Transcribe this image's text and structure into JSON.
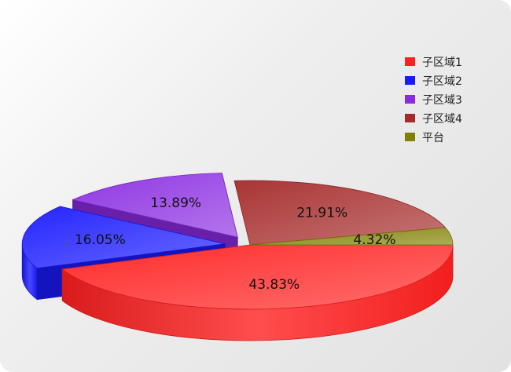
{
  "chart_data": {
    "type": "pie",
    "title": "",
    "categories": [
      "子区域1",
      "子区域2",
      "子区域3",
      "子区域4",
      "平台"
    ],
    "values": [
      43.83,
      16.05,
      13.89,
      21.91,
      4.32
    ],
    "labels": [
      "43.83%",
      "16.05%",
      "13.89%",
      "21.91%",
      "4.32%"
    ],
    "colors": [
      "#ff2020",
      "#1a1aff",
      "#8a2be2",
      "#a52a2a",
      "#808000"
    ],
    "exploded": [
      "子区域2",
      "子区域3"
    ],
    "legend_position": "top-right",
    "style": "3d"
  }
}
